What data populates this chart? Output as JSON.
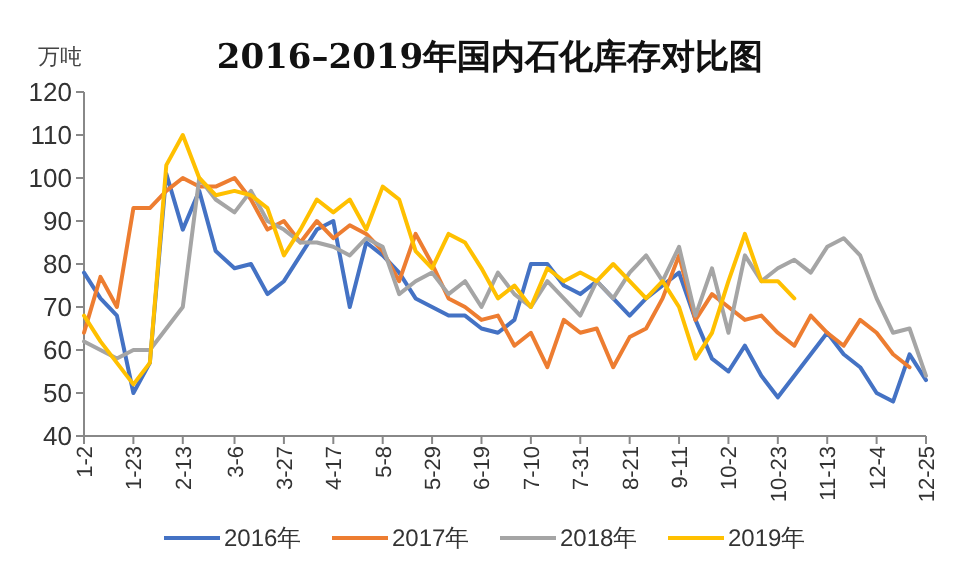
{
  "chart_data": {
    "type": "line",
    "title": "2016–2019年国内石化库存对比图",
    "ylabel": "万吨",
    "x": [
      "--01-02",
      "--01-09",
      "--01-16",
      "--01-23",
      "--01-30",
      "--02-06",
      "--02-13",
      "--02-20",
      "--02-27",
      "--03-06",
      "--03-13",
      "--03-20",
      "--03-27",
      "--04-03",
      "--04-10",
      "--04-17",
      "--04-24",
      "--05-01",
      "--05-08",
      "--05-15",
      "--05-22",
      "--05-29",
      "--06-05",
      "--06-12",
      "--06-19",
      "--06-26",
      "--07-03",
      "--07-10",
      "--07-17",
      "--07-24",
      "--07-31",
      "--08-07",
      "--08-14",
      "--08-21",
      "--08-28",
      "--09-04",
      "--09-11",
      "--09-18",
      "--09-25",
      "--10-02",
      "--10-09",
      "--10-16",
      "--10-23",
      "--10-30",
      "--11-06",
      "--11-13",
      "--11-20",
      "--11-27",
      "--12-04",
      "--12-11",
      "--12-18",
      "--12-25"
    ],
    "series": [
      {
        "name": "2016年",
        "color": "#4472c4",
        "values": [
          78,
          72,
          68,
          50,
          57,
          101,
          88,
          97,
          83,
          79,
          80,
          73,
          76,
          82,
          88,
          90,
          70,
          85,
          82,
          78,
          72,
          70,
          68,
          68,
          65,
          64,
          67,
          80,
          80,
          75,
          73,
          76,
          72,
          68,
          72,
          75,
          78,
          67,
          58,
          55,
          61,
          54,
          49,
          54,
          59,
          64,
          59,
          56,
          50,
          48,
          59,
          53
        ]
      },
      {
        "name": "2017年",
        "color": "#ed7d31",
        "values": [
          64,
          77,
          70,
          93,
          93,
          97,
          100,
          98,
          98,
          100,
          95,
          88,
          90,
          85,
          90,
          86,
          89,
          87,
          83,
          76,
          87,
          80,
          72,
          70,
          67,
          68,
          61,
          64,
          56,
          67,
          64,
          65,
          56,
          63,
          65,
          72,
          82,
          67,
          73,
          70,
          67,
          68,
          64,
          61,
          68,
          64,
          61,
          67,
          64,
          59,
          56,
          null
        ]
      },
      {
        "name": "2018年",
        "color": "#a5a5a5",
        "values": [
          62,
          60,
          58,
          60,
          60,
          65,
          70,
          100,
          95,
          92,
          97,
          90,
          88,
          85,
          85,
          84,
          82,
          86,
          84,
          73,
          76,
          78,
          73,
          76,
          70,
          78,
          73,
          70,
          76,
          72,
          68,
          76,
          72,
          78,
          82,
          76,
          84,
          68,
          79,
          64,
          82,
          76,
          79,
          81,
          78,
          84,
          86,
          82,
          72,
          64,
          65,
          54
        ]
      },
      {
        "name": "2019年",
        "color": "#ffc000",
        "values": [
          68,
          62,
          57,
          52,
          57,
          103,
          110,
          100,
          96,
          97,
          96,
          93,
          82,
          88,
          95,
          92,
          95,
          88,
          98,
          95,
          83,
          79,
          87,
          85,
          79,
          72,
          75,
          70,
          79,
          76,
          78,
          76,
          80,
          76,
          72,
          76,
          70,
          58,
          64,
          76,
          87,
          76,
          76,
          72,
          null,
          null,
          null,
          null,
          null,
          null,
          null,
          null
        ]
      }
    ],
    "xlim": [
      "--01-02",
      "--12-25"
    ],
    "xticks": [
      {
        "value": "--01-02",
        "label": "1-2"
      },
      {
        "value": "--01-23",
        "label": "1-23"
      },
      {
        "value": "--02-13",
        "label": "2-13"
      },
      {
        "value": "--03-06",
        "label": "3-6"
      },
      {
        "value": "--03-27",
        "label": "3-27"
      },
      {
        "value": "--04-17",
        "label": "4-17"
      },
      {
        "value": "--05-08",
        "label": "5-8"
      },
      {
        "value": "--05-29",
        "label": "5-29"
      },
      {
        "value": "--06-19",
        "label": "6-19"
      },
      {
        "value": "--07-10",
        "label": "7-10"
      },
      {
        "value": "--07-31",
        "label": "7-31"
      },
      {
        "value": "--08-21",
        "label": "8-21"
      },
      {
        "value": "--09-11",
        "label": "9-11"
      },
      {
        "value": "--10-02",
        "label": "10-2"
      },
      {
        "value": "--10-23",
        "label": "10-23"
      },
      {
        "value": "--11-13",
        "label": "11-13"
      },
      {
        "value": "--12-04",
        "label": "12-4"
      },
      {
        "value": "--12-25",
        "label": "12-25"
      }
    ],
    "ylim": [
      40,
      120
    ],
    "yticks": [
      40,
      50,
      60,
      70,
      80,
      90,
      100,
      110,
      120
    ],
    "grid": false,
    "legend": "bottom",
    "marker": "none",
    "line_style": "solid"
  }
}
